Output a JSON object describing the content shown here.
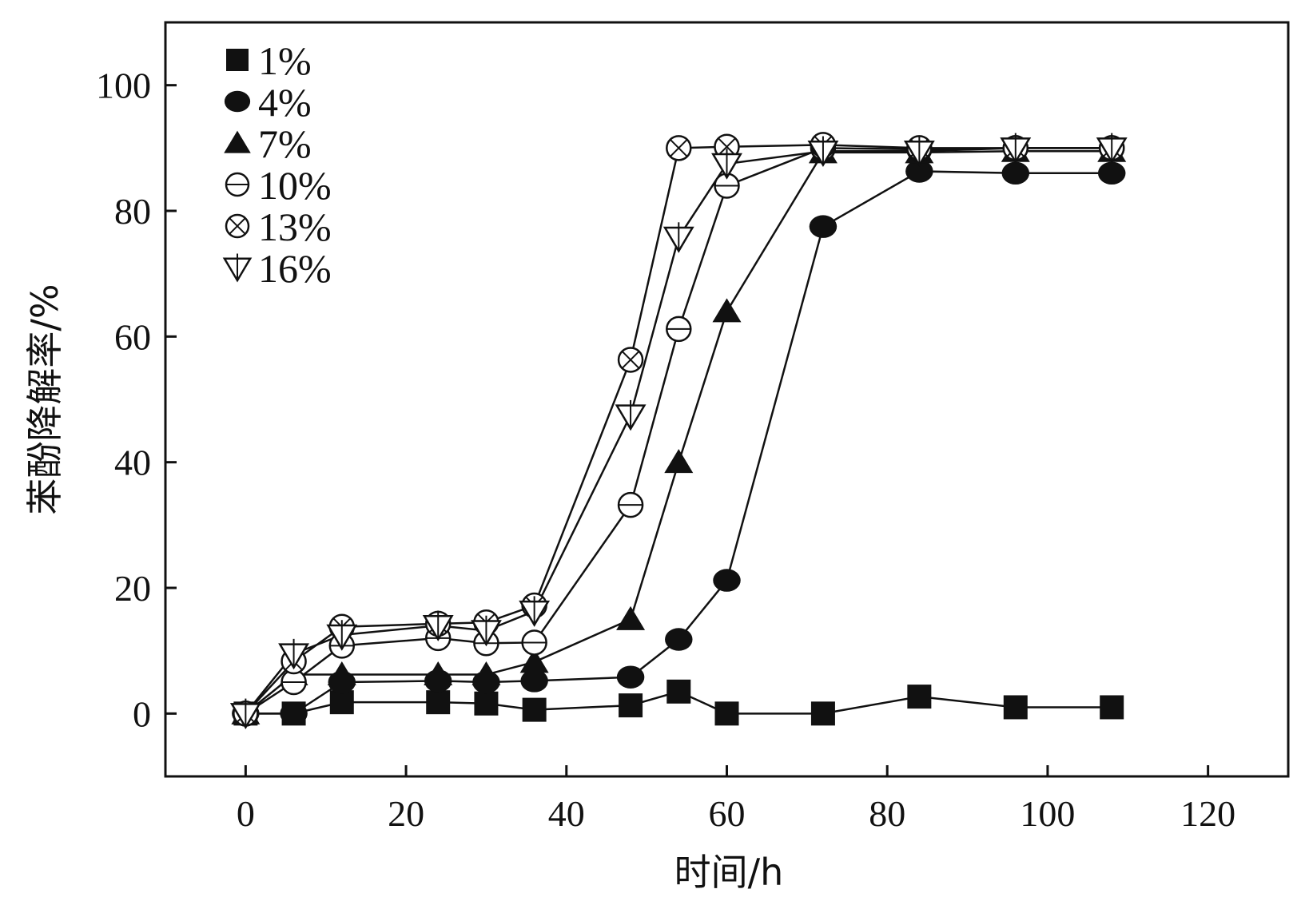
{
  "chart_data": {
    "type": "line",
    "title": "",
    "xlabel": "时间/h",
    "ylabel": "苯酚降解率/%",
    "xlim": [
      -10,
      130
    ],
    "ylim": [
      -10,
      110
    ],
    "xticks": [
      0,
      20,
      40,
      60,
      80,
      100,
      120
    ],
    "yticks": [
      0,
      20,
      40,
      60,
      80,
      100
    ],
    "xtick_labels": [
      "0",
      "20",
      "40",
      "60",
      "80",
      "100",
      "120"
    ],
    "ytick_labels": [
      "0",
      "20",
      "40",
      "60",
      "80",
      "100"
    ],
    "legend_position": "top-left",
    "series": [
      {
        "name": "1%",
        "marker": "square-filled",
        "x": [
          0,
          6,
          12,
          24,
          30,
          36,
          48,
          54,
          60,
          72,
          84,
          96,
          108
        ],
        "y": [
          0,
          0,
          1.8,
          1.8,
          1.6,
          0.6,
          1.3,
          3.5,
          0,
          0,
          2.7,
          1,
          1
        ]
      },
      {
        "name": "4%",
        "marker": "circle-filled",
        "x": [
          0,
          6,
          12,
          24,
          30,
          36,
          48,
          54,
          60,
          72,
          84,
          96,
          108
        ],
        "y": [
          0,
          0,
          5,
          5.2,
          5,
          5.2,
          5.8,
          11.8,
          21.2,
          77.5,
          86.3,
          86,
          86
        ]
      },
      {
        "name": "7%",
        "marker": "triangle-up-filled",
        "x": [
          0,
          6,
          12,
          24,
          30,
          36,
          48,
          54,
          60,
          72,
          84,
          96,
          108
        ],
        "y": [
          0,
          6.2,
          6.2,
          6.2,
          6.2,
          8.2,
          15,
          40,
          64,
          89.3,
          89.3,
          89.5,
          89.5
        ]
      },
      {
        "name": "10%",
        "marker": "circle-open-bar",
        "x": [
          0,
          6,
          12,
          24,
          30,
          36,
          48,
          54,
          60,
          72,
          84,
          96,
          108
        ],
        "y": [
          0,
          5,
          10.8,
          12,
          11.2,
          11.3,
          33.2,
          61.2,
          84,
          90,
          89.8,
          90,
          90
        ]
      },
      {
        "name": "13%",
        "marker": "circle-x-open",
        "x": [
          0,
          6,
          12,
          24,
          30,
          36,
          48,
          54,
          60,
          72,
          84,
          96,
          108
        ],
        "y": [
          0,
          8.3,
          13.8,
          14.3,
          14.5,
          17.2,
          56.3,
          90,
          90.2,
          90.5,
          90,
          90,
          90
        ]
      },
      {
        "name": "16%",
        "marker": "triangle-down-open-bar",
        "x": [
          0,
          6,
          12,
          24,
          30,
          36,
          48,
          54,
          60,
          72,
          84,
          96,
          108
        ],
        "y": [
          0,
          9.5,
          12.5,
          14,
          13.2,
          16.3,
          47.5,
          75.8,
          87.5,
          89.5,
          89.5,
          90,
          90
        ]
      }
    ],
    "colors": {
      "line": "#111111",
      "fill": "#111111",
      "background": "#ffffff"
    }
  }
}
